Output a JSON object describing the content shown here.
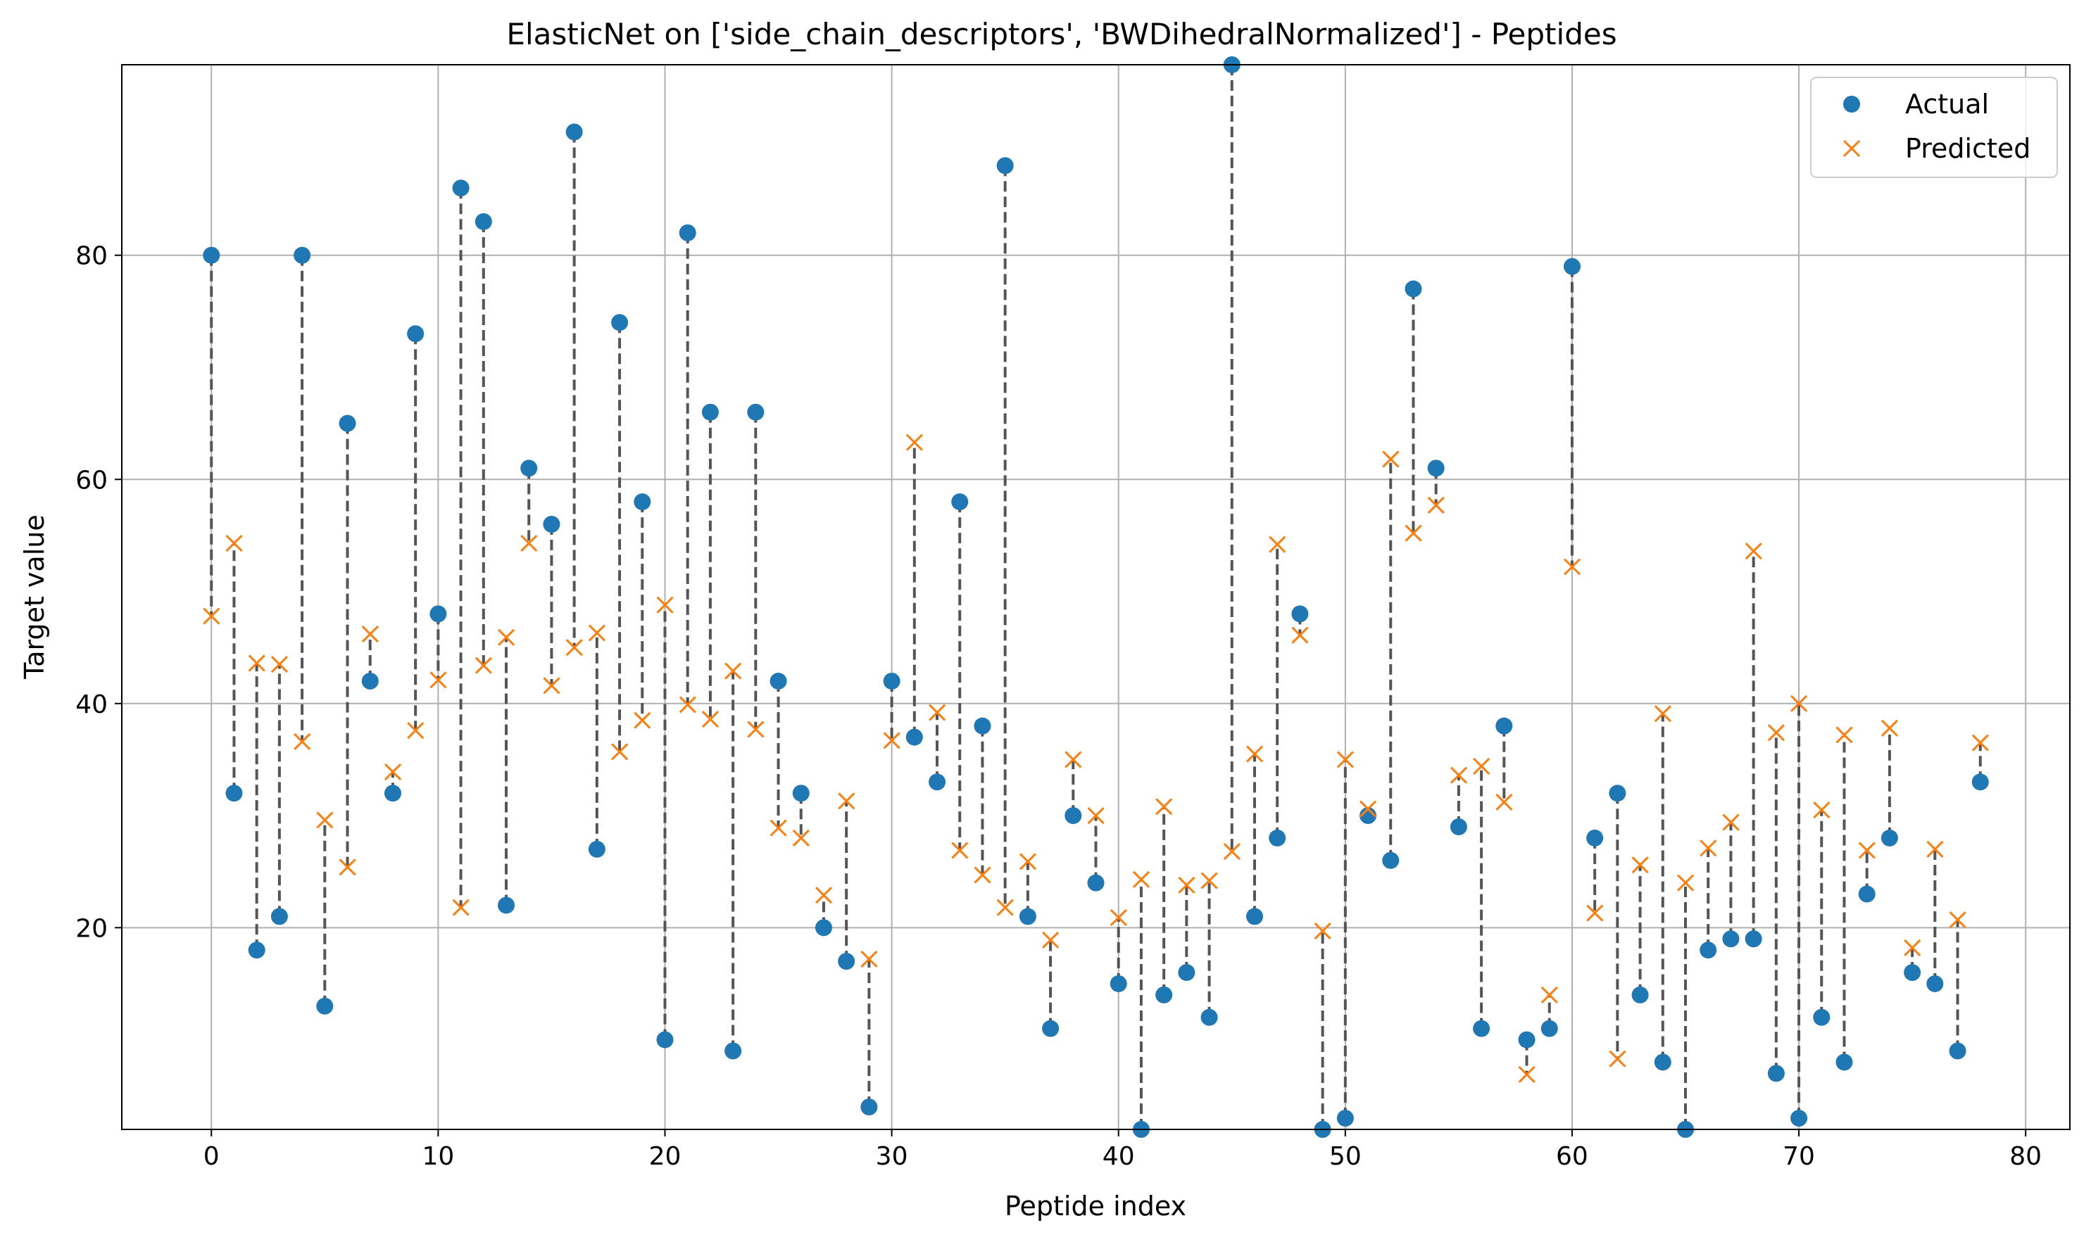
{
  "chart_data": {
    "type": "scatter",
    "title": "ElasticNet on ['side_chain_descriptors', 'BWDihedralNormalized'] - Peptides",
    "xlabel": "Peptide index",
    "ylabel": "Target value",
    "xlim": [
      -3.95,
      81.95
    ],
    "ylim": [
      2,
      97
    ],
    "xticks": [
      0,
      10,
      20,
      30,
      40,
      50,
      60,
      70,
      80
    ],
    "yticks": [
      20,
      40,
      60,
      80
    ],
    "xtick_labels": [
      "0",
      "10",
      "20",
      "30",
      "40",
      "50",
      "60",
      "70",
      "80"
    ],
    "ytick_labels": [
      "20",
      "40",
      "60",
      "80"
    ],
    "grid": true,
    "legend": {
      "placement": "upper right",
      "entries": [
        "Actual",
        "Predicted"
      ]
    },
    "colors": {
      "actual": "#1f77b4",
      "predicted": "#ff7f0e",
      "connector": "#555555"
    },
    "x": [
      0,
      1,
      2,
      3,
      4,
      5,
      6,
      7,
      8,
      9,
      10,
      11,
      12,
      13,
      14,
      15,
      16,
      17,
      18,
      19,
      20,
      21,
      22,
      23,
      24,
      25,
      26,
      27,
      28,
      29,
      30,
      31,
      32,
      33,
      34,
      35,
      36,
      37,
      38,
      39,
      40,
      41,
      42,
      43,
      44,
      45,
      46,
      47,
      48,
      49,
      50,
      51,
      52,
      53,
      54,
      55,
      56,
      57,
      58,
      59,
      60,
      61,
      62,
      63,
      64,
      65,
      66,
      67,
      68,
      69,
      70,
      71,
      72,
      73,
      74,
      75,
      76,
      77,
      78
    ],
    "series": [
      {
        "name": "Actual",
        "marker": "circle",
        "values": [
          80,
          32,
          18,
          21,
          80,
          13,
          65,
          42,
          32,
          73,
          48,
          86,
          83,
          22,
          61,
          56,
          91,
          27,
          74,
          58,
          10,
          82,
          66,
          9,
          66,
          42,
          32,
          20,
          17,
          4,
          42,
          37,
          33,
          58,
          38,
          88,
          21,
          11,
          30,
          24,
          15,
          2,
          14,
          16,
          12,
          97,
          21,
          28,
          48,
          2,
          3,
          30,
          26,
          77,
          61,
          29,
          11,
          38,
          10,
          11,
          79,
          28,
          32,
          14,
          8,
          2,
          18,
          19,
          19,
          7,
          3,
          12,
          8,
          23,
          28,
          16,
          15,
          9,
          33
        ]
      },
      {
        "name": "Predicted",
        "marker": "x",
        "values": [
          47.8,
          54.3,
          43.6,
          43.5,
          36.6,
          29.6,
          25.4,
          46.2,
          33.9,
          37.6,
          42.1,
          21.8,
          43.4,
          45.9,
          54.3,
          41.6,
          45.0,
          46.3,
          35.7,
          38.5,
          48.8,
          39.9,
          38.6,
          42.9,
          37.7,
          28.9,
          28.0,
          22.9,
          31.3,
          17.2,
          36.7,
          63.3,
          39.2,
          26.9,
          24.7,
          21.8,
          25.9,
          18.9,
          35.0,
          30.0,
          20.9,
          24.3,
          30.8,
          23.8,
          24.2,
          26.8,
          35.5,
          54.2,
          46.1,
          19.7,
          35.0,
          30.6,
          61.8,
          55.2,
          57.7,
          33.6,
          34.4,
          31.2,
          6.9,
          14.0,
          52.2,
          21.3,
          8.3,
          25.6,
          39.1,
          24.0,
          27.1,
          29.4,
          53.6,
          37.4,
          40.0,
          30.5,
          37.2,
          26.9,
          37.8,
          18.2,
          27.0,
          20.7,
          36.5
        ]
      }
    ]
  }
}
